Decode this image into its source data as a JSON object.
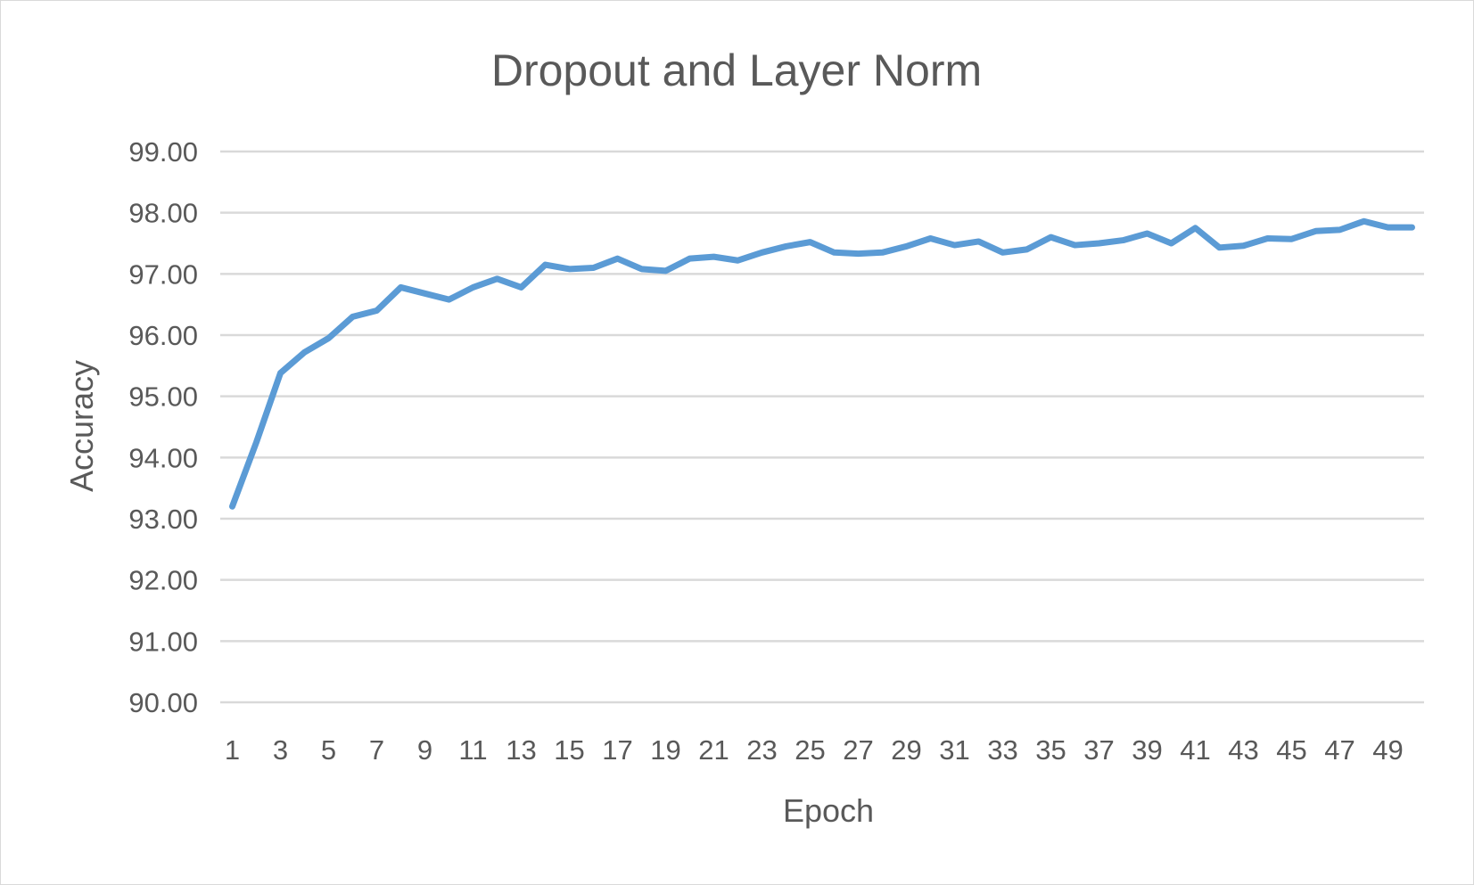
{
  "chart_data": {
    "type": "line",
    "title": "Dropout and Layer Norm",
    "xlabel": "Epoch",
    "ylabel": "Accuracy",
    "ylim": [
      90,
      99
    ],
    "yticks": [
      "90.00",
      "91.00",
      "92.00",
      "93.00",
      "94.00",
      "95.00",
      "96.00",
      "97.00",
      "98.00",
      "99.00"
    ],
    "xtick_labels": [
      "1",
      "3",
      "5",
      "7",
      "9",
      "11",
      "13",
      "15",
      "17",
      "19",
      "21",
      "23",
      "25",
      "27",
      "29",
      "31",
      "33",
      "35",
      "37",
      "39",
      "41",
      "43",
      "45",
      "47",
      "49"
    ],
    "grid": true,
    "legend": "none",
    "x": [
      1,
      2,
      3,
      4,
      5,
      6,
      7,
      8,
      9,
      10,
      11,
      12,
      13,
      14,
      15,
      16,
      17,
      18,
      19,
      20,
      21,
      22,
      23,
      24,
      25,
      26,
      27,
      28,
      29,
      30,
      31,
      32,
      33,
      34,
      35,
      36,
      37,
      38,
      39,
      40,
      41,
      42,
      43,
      44,
      45,
      46,
      47,
      48,
      49,
      50
    ],
    "series": [
      {
        "color": "#5b9bd5",
        "values": [
          93.2,
          94.25,
          95.38,
          95.72,
          95.95,
          96.3,
          96.4,
          96.78,
          96.68,
          96.58,
          96.78,
          96.92,
          96.78,
          97.15,
          97.08,
          97.1,
          97.25,
          97.08,
          97.05,
          97.25,
          97.28,
          97.22,
          97.35,
          97.45,
          97.52,
          97.35,
          97.33,
          97.35,
          97.45,
          97.58,
          97.47,
          97.53,
          97.35,
          97.4,
          97.6,
          97.47,
          97.5,
          97.55,
          97.66,
          97.5,
          97.75,
          97.43,
          97.46,
          97.58,
          97.57,
          97.7,
          97.72,
          97.86,
          97.76,
          97.76
        ]
      }
    ]
  }
}
